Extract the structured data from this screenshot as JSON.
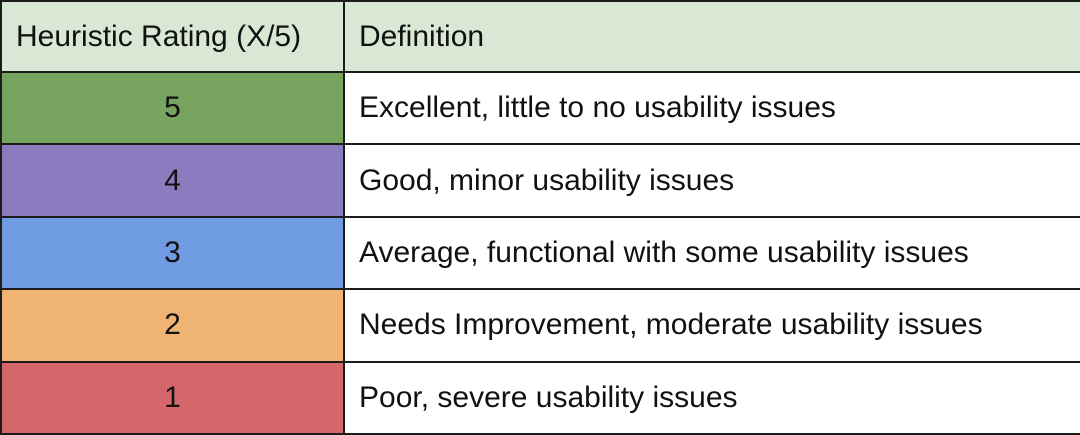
{
  "table": {
    "headers": {
      "rating": "Heuristic Rating (X/5)",
      "definition": "Definition"
    },
    "header_bg": "#d9e8d4",
    "rows": [
      {
        "rating": "5",
        "definition": "Excellent, little to no usability issues",
        "color": "#77a45f"
      },
      {
        "rating": "4",
        "definition": "Good, minor usability issues",
        "color": "#8a7cbf"
      },
      {
        "rating": "3",
        "definition": "Average, functional with some usability issues",
        "color": "#6f9be3"
      },
      {
        "rating": "2",
        "definition": "Needs Improvement, moderate usability issues",
        "color": "#efb474"
      },
      {
        "rating": "1",
        "definition": "Poor, severe usability issues",
        "color": "#d5676a"
      }
    ]
  }
}
